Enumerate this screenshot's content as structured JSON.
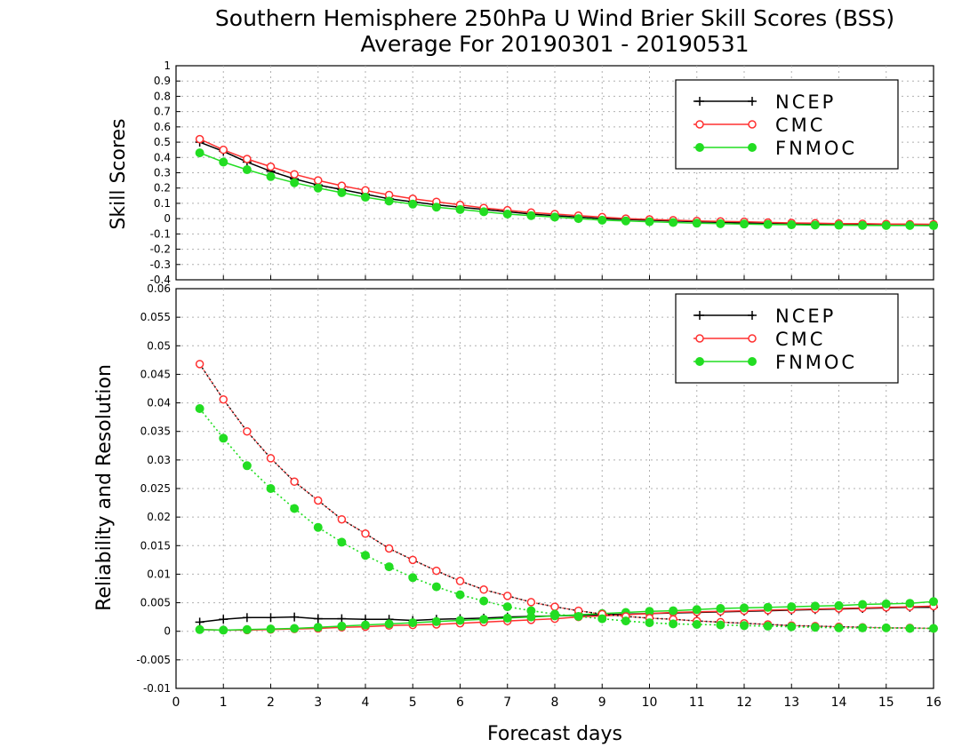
{
  "chart_data": {
    "title": "Southern Hemisphere 250hPa U Wind Brier Skill Scores (BSS)",
    "subtitle": "Average For 20190301 - 20190531",
    "xlabel": "Forecast days",
    "xlim": [
      0,
      16
    ],
    "xticks": [
      "0",
      "1",
      "2",
      "3",
      "4",
      "5",
      "6",
      "7",
      "8",
      "9",
      "10",
      "11",
      "12",
      "13",
      "14",
      "15",
      "16"
    ],
    "x": [
      0.5,
      1,
      1.5,
      2,
      2.5,
      3,
      3.5,
      4,
      4.5,
      5,
      5.5,
      6,
      6.5,
      7,
      7.5,
      8,
      8.5,
      9,
      9.5,
      10,
      10.5,
      11,
      11.5,
      12,
      12.5,
      13,
      13.5,
      14,
      14.5,
      15,
      15.5,
      16
    ],
    "legend": [
      {
        "name": "NCEP",
        "color": "#000000",
        "marker": "plus"
      },
      {
        "name": "CMC",
        "color": "#ff3030",
        "marker": "open-circle"
      },
      {
        "name": "FNMOC",
        "color": "#22dd22",
        "marker": "filled-circle"
      }
    ],
    "panels": [
      {
        "type": "line",
        "ylabel": "Skill Scores",
        "ylim": [
          -0.4,
          1
        ],
        "yticks": [
          "1",
          "0.9",
          "0.8",
          "0.7",
          "0.6",
          "0.5",
          "0.4",
          "0.3",
          "0.2",
          "0.1",
          "0",
          "-0.1",
          "-0.2",
          "-0.3",
          "-0.4"
        ],
        "legend_position": "top-right",
        "grid": true,
        "series": [
          {
            "name": "NCEP",
            "values": [
              0.5,
              0.44,
              0.37,
              0.31,
              0.26,
              0.22,
              0.19,
              0.16,
              0.13,
              0.11,
              0.09,
              0.075,
              0.06,
              0.045,
              0.03,
              0.02,
              0.01,
              0.0,
              -0.005,
              -0.01,
              -0.015,
              -0.02,
              -0.025,
              -0.028,
              -0.03,
              -0.033,
              -0.035,
              -0.037,
              -0.038,
              -0.04,
              -0.04,
              -0.04
            ]
          },
          {
            "name": "CMC",
            "values": [
              0.52,
              0.45,
              0.39,
              0.34,
              0.29,
              0.25,
              0.215,
              0.185,
              0.155,
              0.13,
              0.11,
              0.09,
              0.07,
              0.055,
              0.04,
              0.03,
              0.02,
              0.01,
              0.0,
              -0.005,
              -0.01,
              -0.015,
              -0.018,
              -0.02,
              -0.025,
              -0.028,
              -0.03,
              -0.032,
              -0.033,
              -0.035,
              -0.036,
              -0.037
            ]
          },
          {
            "name": "FNMOC",
            "values": [
              0.43,
              0.37,
              0.32,
              0.275,
              0.235,
              0.2,
              0.17,
              0.14,
              0.115,
              0.095,
              0.075,
              0.06,
              0.045,
              0.03,
              0.02,
              0.01,
              0.0,
              -0.01,
              -0.015,
              -0.02,
              -0.025,
              -0.03,
              -0.033,
              -0.035,
              -0.038,
              -0.04,
              -0.042,
              -0.043,
              -0.044,
              -0.045,
              -0.045,
              -0.046
            ]
          }
        ]
      },
      {
        "type": "line",
        "ylabel": "Reliability and Resolution",
        "ylim": [
          -0.01,
          0.06
        ],
        "yticks": [
          "0.06",
          "0.055",
          "0.05",
          "0.045",
          "0.04",
          "0.035",
          "0.03",
          "0.025",
          "0.02",
          "0.015",
          "0.01",
          "0.005",
          "0",
          "-0.005",
          "-0.01"
        ],
        "legend_position": "top-right",
        "grid": true,
        "series": [
          {
            "name": "NCEP",
            "kind": "solid",
            "values": [
              0.0016,
              0.0021,
              0.0024,
              0.0024,
              0.0025,
              0.0022,
              0.0022,
              0.0021,
              0.0021,
              0.0019,
              0.0021,
              0.0022,
              0.0023,
              0.0025,
              0.0026,
              0.0027,
              0.0028,
              0.0029,
              0.003,
              0.0031,
              0.0032,
              0.0033,
              0.0034,
              0.0035,
              0.0036,
              0.0037,
              0.0038,
              0.0039,
              0.004,
              0.0041,
              0.0042,
              0.0042
            ]
          },
          {
            "name": "CMC",
            "kind": "solid",
            "values": [
              0.0003,
              0.0002,
              0.0002,
              0.0003,
              0.0004,
              0.0005,
              0.0007,
              0.0008,
              0.001,
              0.0011,
              0.0012,
              0.0014,
              0.0016,
              0.0018,
              0.002,
              0.0022,
              0.0025,
              0.0027,
              0.0029,
              0.0031,
              0.0033,
              0.0034,
              0.0035,
              0.0036,
              0.0037,
              0.0038,
              0.0039,
              0.004,
              0.0041,
              0.0042,
              0.0043,
              0.0044
            ]
          },
          {
            "name": "FNMOC",
            "kind": "solid",
            "values": [
              0.0003,
              0.0002,
              0.0003,
              0.0004,
              0.0005,
              0.0007,
              0.0009,
              0.0011,
              0.0013,
              0.0015,
              0.0017,
              0.0019,
              0.0021,
              0.0023,
              0.0025,
              0.0027,
              0.0029,
              0.0031,
              0.0033,
              0.0035,
              0.0036,
              0.0038,
              0.004,
              0.0041,
              0.0042,
              0.0043,
              0.0044,
              0.0045,
              0.0047,
              0.0048,
              0.0049,
              0.0052
            ]
          },
          {
            "name": "CMC",
            "kind": "dotted",
            "values": [
              0.0468,
              0.0406,
              0.035,
              0.0303,
              0.0262,
              0.0229,
              0.0196,
              0.0171,
              0.0145,
              0.0125,
              0.0106,
              0.0088,
              0.0073,
              0.0062,
              0.0051,
              0.0043,
              0.0036,
              0.003,
              0.0026,
              0.0023,
              0.0021,
              0.0018,
              0.0016,
              0.0014,
              0.0012,
              0.001,
              0.0009,
              0.0008,
              0.0007,
              0.0006,
              0.0006,
              0.0005
            ]
          },
          {
            "name": "FNMOC",
            "kind": "dotted",
            "values": [
              0.039,
              0.0338,
              0.029,
              0.025,
              0.0215,
              0.0182,
              0.0156,
              0.0133,
              0.0113,
              0.0094,
              0.0078,
              0.0064,
              0.0053,
              0.0043,
              0.0036,
              0.003,
              0.0026,
              0.0022,
              0.0018,
              0.0015,
              0.0013,
              0.0012,
              0.0011,
              0.001,
              0.0009,
              0.0008,
              0.0007,
              0.0006,
              0.0006,
              0.0006,
              0.0005,
              0.0005
            ]
          }
        ]
      }
    ]
  }
}
